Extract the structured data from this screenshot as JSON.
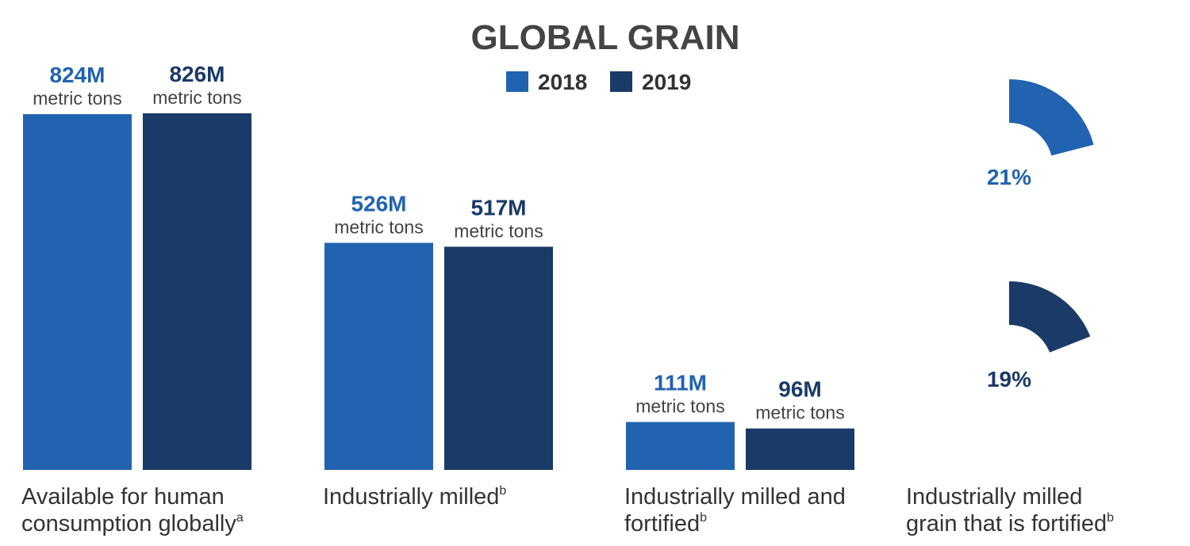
{
  "chart_data": [
    {
      "type": "bar",
      "title": "GLOBAL GRAIN",
      "categories": [
        "Available for human consumption globally",
        "Industrially milled",
        "Industrially milled and fortified"
      ],
      "category_notes": [
        "a",
        "b",
        "b"
      ],
      "unit_label": "metric tons",
      "series": [
        {
          "name": "2018",
          "color": "#2163b0",
          "values": [
            824,
            526,
            111
          ],
          "value_labels": [
            "824M",
            "526M",
            "111M"
          ]
        },
        {
          "name": "2019",
          "color": "#1a3a68",
          "values": [
            826,
            517,
            96
          ],
          "value_labels": [
            "826M",
            "517M",
            "96M"
          ]
        }
      ]
    },
    {
      "type": "donut",
      "categories": [
        "Industrially milled grain that is fortified"
      ],
      "category_notes": [
        "b"
      ],
      "series": [
        {
          "color": "#2163b0",
          "values": [
            21
          ],
          "value_labels": [
            "21%"
          ]
        },
        {
          "color": "#1a3a68",
          "values": [
            19
          ],
          "value_labels": [
            "19%"
          ]
        }
      ]
    }
  ]
}
